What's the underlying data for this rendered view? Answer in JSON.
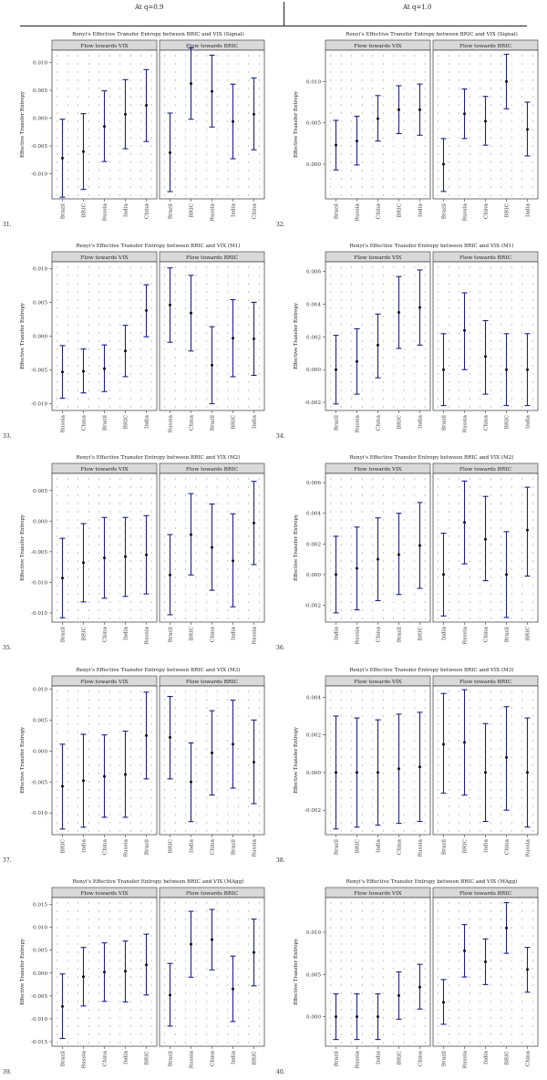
{
  "header": {
    "left": "At q=0.9",
    "right": "At q=1.0"
  },
  "colors": {
    "errorbar": "#1f1f8a",
    "strip": "#d9d9d9",
    "border": "#333333",
    "dot": "#555555"
  },
  "chart_data": [
    {
      "type": "errorbar",
      "number": "31.",
      "title": "Renyi's Effective Transfer Entropy between BRIC and VIX (Signal)",
      "ylabel": "Effective Transfer Entropy",
      "yticks": [
        "0.010",
        "0.005",
        "0.000",
        "-0.005",
        "-0.010"
      ],
      "tickvals": [
        0.01,
        0.005,
        0.0,
        -0.005,
        -0.01
      ],
      "ylim": [
        -0.0145,
        0.0122
      ],
      "panels": [
        {
          "strip": "Flow towards VIX",
          "categories": [
            "Brazil",
            "BRIC",
            "Russia",
            "India",
            "China"
          ],
          "est": [
            -0.0072,
            -0.006,
            -0.0015,
            0.0007,
            0.0023
          ],
          "low": [
            -0.0142,
            -0.0128,
            -0.0078,
            -0.0055,
            -0.0042
          ],
          "high": [
            -0.0002,
            0.0008,
            0.0049,
            0.0069,
            0.0087
          ]
        },
        {
          "strip": "Flow towards BRIC",
          "categories": [
            "Brazil",
            "BRIC",
            "Russia",
            "India",
            "China"
          ],
          "est": [
            -0.0062,
            0.0062,
            0.0048,
            -0.0006,
            0.0007
          ],
          "low": [
            -0.0132,
            -0.0002,
            -0.0016,
            -0.0073,
            -0.0057
          ],
          "high": [
            0.0009,
            0.0126,
            0.0113,
            0.0061,
            0.0072
          ]
        }
      ]
    },
    {
      "type": "errorbar",
      "number": "32.",
      "title": "Renyi's Effective Transfer Entropy between BRIC and VIX (Signal)",
      "ylabel": "Effective Transfer Entropy",
      "yticks": [
        "0.010",
        "0.005",
        "0.000"
      ],
      "tickvals": [
        0.01,
        0.005,
        0.0
      ],
      "ylim": [
        -0.0042,
        0.0138
      ],
      "panels": [
        {
          "strip": "Flow towards VIX",
          "categories": [
            "Brazil",
            "Russia",
            "China",
            "BRIC",
            "India"
          ],
          "est": [
            0.0023,
            0.0028,
            0.0055,
            0.0066,
            0.0066
          ],
          "low": [
            -0.0007,
            -0.0001,
            0.0028,
            0.0037,
            0.0035
          ],
          "high": [
            0.0053,
            0.0058,
            0.0083,
            0.0095,
            0.0097
          ]
        },
        {
          "strip": "Flow towards BRIC",
          "categories": [
            "Brazil",
            "Russia",
            "China",
            "BRIC",
            "India"
          ],
          "est": [
            0.0,
            0.0061,
            0.0052,
            0.01,
            0.0042
          ],
          "low": [
            -0.0033,
            0.0031,
            0.0023,
            0.0067,
            0.001
          ],
          "high": [
            0.0031,
            0.0091,
            0.0082,
            0.0133,
            0.0075
          ]
        }
      ]
    },
    {
      "type": "errorbar",
      "number": "33.",
      "title": "Renyi's Effective Transfer Entropy between BRIC and VIX (M1)",
      "ylabel": "Effective Transfer Entropy",
      "yticks": [
        "0.010",
        "0.005",
        "0.000",
        "-0.005",
        "-0.010"
      ],
      "tickvals": [
        0.01,
        0.005,
        0.0,
        -0.005,
        -0.01
      ],
      "ylim": [
        -0.011,
        0.011
      ],
      "panels": [
        {
          "strip": "Flow towards VIX",
          "categories": [
            "Russia",
            "China",
            "Brazil",
            "BRIC",
            "India"
          ],
          "est": [
            -0.0053,
            -0.0052,
            -0.0048,
            -0.0022,
            0.0038
          ],
          "low": [
            -0.0092,
            -0.0084,
            -0.0082,
            -0.006,
            -0.0001
          ],
          "high": [
            -0.0014,
            -0.0019,
            -0.0013,
            0.0016,
            0.0076
          ]
        },
        {
          "strip": "Flow towards BRIC",
          "categories": [
            "Russia",
            "China",
            "Brazil",
            "BRIC",
            "India"
          ],
          "est": [
            0.0046,
            0.0034,
            -0.0043,
            -0.0003,
            -0.0004
          ],
          "low": [
            -0.0009,
            -0.0022,
            -0.01,
            -0.006,
            -0.0058
          ],
          "high": [
            0.0101,
            0.009,
            0.0014,
            0.0054,
            0.005
          ]
        }
      ]
    },
    {
      "type": "errorbar",
      "number": "34.",
      "title": "Renyi's Effective Transfer Entropy between BRIC and VIX (M1)",
      "ylabel": "Effective Transfer Entropy",
      "yticks": [
        "0.006",
        "0.004",
        "0.002",
        "0.000",
        "-0.002"
      ],
      "tickvals": [
        0.006,
        0.004,
        0.002,
        0.0,
        -0.002
      ],
      "ylim": [
        -0.0025,
        0.0066
      ],
      "panels": [
        {
          "strip": "Flow towards VIX",
          "categories": [
            "Brazil",
            "Russia",
            "China",
            "BRIC",
            "India"
          ],
          "est": [
            0.0,
            0.0005,
            0.0015,
            0.0035,
            0.0038
          ],
          "low": [
            -0.0021,
            -0.0015,
            -0.0005,
            0.0013,
            0.0015
          ],
          "high": [
            0.0021,
            0.0025,
            0.0034,
            0.0057,
            0.0061
          ]
        },
        {
          "strip": "Flow towards BRIC",
          "categories": [
            "Brazil",
            "Russia",
            "China",
            "BRIC",
            "India"
          ],
          "est": [
            0.0,
            0.0024,
            0.0008,
            0.0,
            0.0
          ],
          "low": [
            -0.0022,
            0.0,
            -0.0015,
            -0.0022,
            -0.0022
          ],
          "high": [
            0.0022,
            0.0047,
            0.003,
            0.0022,
            0.0022
          ]
        }
      ]
    },
    {
      "type": "errorbar",
      "number": "35.",
      "title": "Renyi's Effective Transfer Entropy between BRIC and VIX (M2)",
      "ylabel": "Effective Transfer Entropy",
      "yticks": [
        "0.005",
        "0.000",
        "-0.005",
        "-0.010",
        "-0.015"
      ],
      "tickvals": [
        0.005,
        0.0,
        -0.005,
        -0.01,
        -0.015
      ],
      "ylim": [
        -0.0165,
        0.0078
      ],
      "panels": [
        {
          "strip": "Flow towards VIX",
          "categories": [
            "Brazil",
            "BRIC",
            "China",
            "India",
            "Russia"
          ],
          "est": [
            -0.0093,
            -0.0068,
            -0.006,
            -0.0058,
            -0.0055
          ],
          "low": [
            -0.0158,
            -0.0132,
            -0.0126,
            -0.0123,
            -0.0119
          ],
          "high": [
            -0.0028,
            -0.0004,
            0.0006,
            0.0006,
            0.0009
          ]
        },
        {
          "strip": "Flow towards BRIC",
          "categories": [
            "Brazil",
            "BRIC",
            "China",
            "India",
            "Russia"
          ],
          "est": [
            -0.0088,
            -0.0022,
            -0.0043,
            -0.0065,
            -0.0003
          ],
          "low": [
            -0.0153,
            -0.0088,
            -0.0113,
            -0.014,
            -0.0071
          ],
          "high": [
            -0.0022,
            0.0045,
            0.0028,
            0.0012,
            0.0065
          ]
        }
      ]
    },
    {
      "type": "errorbar",
      "number": "36.",
      "title": "Renyi's Effective Transfer Entropy between BRIC and VIX (M2)",
      "ylabel": "Effective Transfer Entropy",
      "yticks": [
        "0.006",
        "0.004",
        "0.002",
        "0.000",
        "-0.002"
      ],
      "tickvals": [
        0.006,
        0.004,
        0.002,
        0.0,
        -0.002
      ],
      "ylim": [
        -0.0031,
        0.0066
      ],
      "panels": [
        {
          "strip": "Flow towards VIX",
          "categories": [
            "India",
            "Russia",
            "China",
            "Brazil",
            "BRIC"
          ],
          "est": [
            0.0,
            0.0004,
            0.001,
            0.0013,
            0.0019
          ],
          "low": [
            -0.0025,
            -0.0023,
            -0.0017,
            -0.0013,
            -0.0009
          ],
          "high": [
            0.0025,
            0.0031,
            0.0037,
            0.004,
            0.0047
          ]
        },
        {
          "strip": "Flow towards BRIC",
          "categories": [
            "India",
            "Russia",
            "China",
            "Brazil",
            "BRIC"
          ],
          "est": [
            0.0,
            0.0034,
            0.0023,
            0.0,
            0.0029
          ],
          "low": [
            -0.0027,
            0.0007,
            -0.0004,
            -0.0028,
            -0.0001
          ],
          "high": [
            0.0027,
            0.0061,
            0.0051,
            0.0028,
            0.0057
          ]
        }
      ]
    },
    {
      "type": "errorbar",
      "number": "37.",
      "title": "Renyi's Effective Transfer Entropy between BRIC and VIX (M3)",
      "ylabel": "Effective Transfer Entropy",
      "yticks": [
        "0.010",
        "0.005",
        "0.000",
        "-0.005",
        "-0.010"
      ],
      "tickvals": [
        0.01,
        0.005,
        0.0,
        -0.005,
        -0.01
      ],
      "ylim": [
        -0.0135,
        0.0105
      ],
      "panels": [
        {
          "strip": "Flow towards VIX",
          "categories": [
            "BRIC",
            "India",
            "China",
            "Russia",
            "Brazil"
          ],
          "est": [
            -0.0057,
            -0.0048,
            -0.0041,
            -0.0038,
            0.0025
          ],
          "low": [
            -0.0126,
            -0.0123,
            -0.0107,
            -0.0107,
            -0.0045
          ],
          "high": [
            0.0011,
            0.0027,
            0.0026,
            0.0032,
            0.0095
          ]
        },
        {
          "strip": "Flow towards BRIC",
          "categories": [
            "BRIC",
            "India",
            "China",
            "Brazil",
            "Russia"
          ],
          "est": [
            0.0022,
            -0.005,
            -0.0003,
            0.0011,
            -0.0018
          ],
          "low": [
            -0.0045,
            -0.0114,
            -0.0071,
            -0.006,
            -0.0085
          ],
          "high": [
            0.0088,
            0.0013,
            0.0065,
            0.0082,
            0.005
          ]
        }
      ]
    },
    {
      "type": "errorbar",
      "number": "38.",
      "title": "Renyi's Effective Transfer Entropy between BRIC and VIX (M3)",
      "ylabel": "Effective Transfer Entropy",
      "yticks": [
        "0.004",
        "0.002",
        "0.000",
        "-0.002"
      ],
      "tickvals": [
        0.004,
        0.002,
        0.0,
        -0.002
      ],
      "ylim": [
        -0.0033,
        0.0046
      ],
      "panels": [
        {
          "strip": "Flow towards VIX",
          "categories": [
            "Brazil",
            "BRIC",
            "India",
            "China",
            "Russia"
          ],
          "est": [
            0.0,
            0.0,
            0.0,
            0.0002,
            0.0003
          ],
          "low": [
            -0.003,
            -0.0029,
            -0.0028,
            -0.0027,
            -0.0026
          ],
          "high": [
            0.003,
            0.0029,
            0.0028,
            0.0031,
            0.0032
          ]
        },
        {
          "strip": "Flow towards BRIC",
          "categories": [
            "Brazil",
            "BRIC",
            "India",
            "China",
            "Russia"
          ],
          "est": [
            0.0015,
            0.0016,
            0.0,
            0.0008,
            0.0
          ],
          "low": [
            -0.0011,
            -0.0012,
            -0.0026,
            -0.002,
            -0.0029
          ],
          "high": [
            0.0042,
            0.0044,
            0.0026,
            0.0035,
            0.0029
          ]
        }
      ]
    },
    {
      "type": "errorbar",
      "number": "39.",
      "title": "Renyi's Effective Transfer Entropy between BRIC and VIX (MAgg)",
      "ylabel": "Effective Transfer Entropy",
      "yticks": [
        "0.015",
        "0.010",
        "0.005",
        "0.000",
        "-0.005",
        "-0.010",
        "-0.015"
      ],
      "tickvals": [
        0.015,
        0.01,
        0.005,
        0.0,
        -0.005,
        -0.01,
        -0.015
      ],
      "ylim": [
        -0.016,
        0.0165
      ],
      "panels": [
        {
          "strip": "Flow towards VIX",
          "categories": [
            "Brazil",
            "Russia",
            "China",
            "India",
            "BRIC"
          ],
          "est": [
            -0.0073,
            -0.0008,
            0.0002,
            0.0004,
            0.0018
          ],
          "low": [
            -0.0143,
            -0.0072,
            -0.0062,
            -0.0063,
            -0.0048
          ],
          "high": [
            -0.0002,
            0.0056,
            0.0066,
            0.007,
            0.0085
          ]
        },
        {
          "strip": "Flow towards BRIC",
          "categories": [
            "Brazil",
            "Russia",
            "China",
            "India",
            "BRIC"
          ],
          "est": [
            -0.0048,
            0.0063,
            0.0073,
            -0.0035,
            0.0045
          ],
          "low": [
            -0.0116,
            -0.0009,
            0.0007,
            -0.0106,
            -0.0028
          ],
          "high": [
            0.0021,
            0.0135,
            0.0139,
            0.0037,
            0.0118
          ]
        }
      ]
    },
    {
      "type": "errorbar",
      "number": "40.",
      "title": "Renyi's Effective Transfer Entropy between BRIC and VIX (MAgg)",
      "ylabel": "Effective Transfer Entropy",
      "yticks": [
        "0.010",
        "0.005",
        "0.000"
      ],
      "tickvals": [
        0.01,
        0.005,
        0.0
      ],
      "ylim": [
        -0.0035,
        0.0141
      ],
      "panels": [
        {
          "strip": "Flow towards VIX",
          "categories": [
            "Brazil",
            "Russia",
            "India",
            "BRIC",
            "China"
          ],
          "est": [
            0.0,
            0.0,
            0.0,
            0.0025,
            0.0035
          ],
          "low": [
            -0.0027,
            -0.0027,
            -0.0027,
            -0.0003,
            0.0009
          ],
          "high": [
            0.0027,
            0.0027,
            0.0027,
            0.0053,
            0.0062
          ]
        },
        {
          "strip": "Flow towards BRIC",
          "categories": [
            "Brazil",
            "Russia",
            "India",
            "BRIC",
            "China"
          ],
          "est": [
            0.0017,
            0.0078,
            0.0065,
            0.0105,
            0.0056
          ],
          "low": [
            -0.0009,
            0.0047,
            0.0038,
            0.0075,
            0.0029
          ],
          "high": [
            0.0044,
            0.0109,
            0.0092,
            0.0135,
            0.0082
          ]
        }
      ]
    }
  ]
}
